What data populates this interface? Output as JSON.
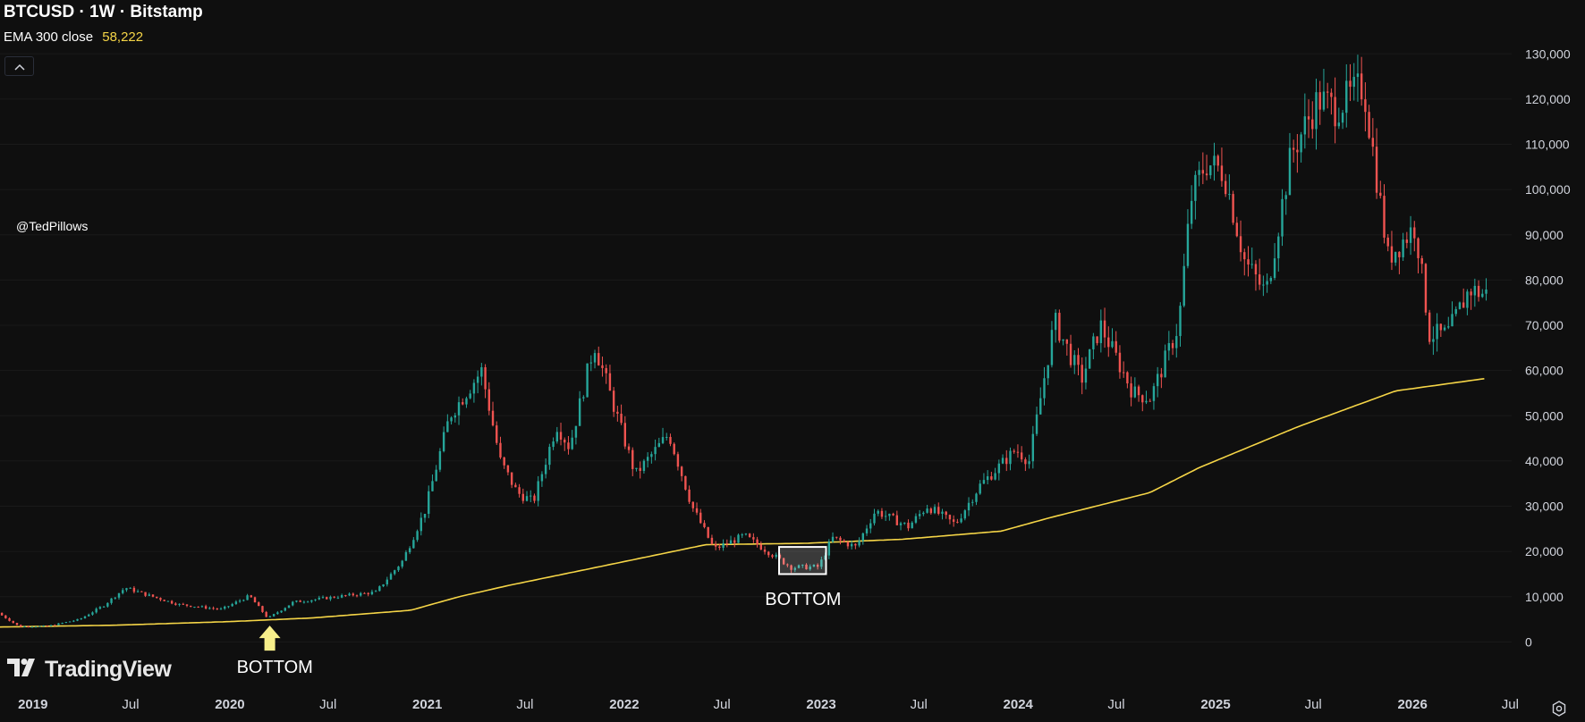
{
  "header": {
    "title": "BTCUSD · 1W · Bitstamp",
    "indicator_label": "EMA 300 close",
    "indicator_value": "58,222",
    "collapse_icon": "chevron-up-icon"
  },
  "watermark": {
    "user": "@TedPillows",
    "logo_text": "TradingView"
  },
  "annotations": {
    "bottom_1": "BOTTOM",
    "bottom_2": "BOTTOM"
  },
  "colors": {
    "background": "#0f0f0f",
    "up": "#26a69a",
    "down": "#ef5350",
    "ema": "#f5d547",
    "text": "#d1d4dc"
  },
  "chart_data": {
    "type": "candlestick",
    "title": "BTCUSD · 1W · Bitstamp",
    "interval": "1W",
    "exchange": "Bitstamp",
    "y_ticks": [
      "130,000",
      "120,000",
      "110,000",
      "100,000",
      "90,000",
      "80,000",
      "70,000",
      "60,000",
      "50,000",
      "40,000",
      "30,000",
      "20,000",
      "10,000",
      "0"
    ],
    "x_ticks": [
      "2019",
      "Jul",
      "2020",
      "Jul",
      "2021",
      "Jul",
      "2022",
      "Jul",
      "2023",
      "Jul",
      "2024",
      "Jul",
      "2025",
      "Jul",
      "2026",
      "Jul"
    ],
    "ylim": [
      -1500,
      135000
    ],
    "price_path": [
      [
        "2018-11-01",
        6400
      ],
      [
        "2018-12-10",
        3400
      ],
      [
        "2019-02-01",
        3500
      ],
      [
        "2019-04-01",
        5000
      ],
      [
        "2019-05-15",
        8000
      ],
      [
        "2019-06-25",
        12000
      ],
      [
        "2019-08-01",
        10500
      ],
      [
        "2019-10-01",
        8300
      ],
      [
        "2019-12-20",
        7200
      ],
      [
        "2020-02-10",
        10200
      ],
      [
        "2020-03-15",
        5200
      ],
      [
        "2020-05-01",
        8800
      ],
      [
        "2020-07-20",
        10000
      ],
      [
        "2020-10-01",
        11000
      ],
      [
        "2020-11-20",
        18000
      ],
      [
        "2020-12-31",
        29000
      ],
      [
        "2021-02-15",
        50000
      ],
      [
        "2021-04-15",
        60000
      ],
      [
        "2021-05-20",
        40000
      ],
      [
        "2021-06-20",
        33000
      ],
      [
        "2021-07-20",
        31000
      ],
      [
        "2021-09-01",
        48000
      ],
      [
        "2021-09-25",
        43000
      ],
      [
        "2021-11-10",
        66000
      ],
      [
        "2021-12-31",
        46500
      ],
      [
        "2022-01-25",
        37000
      ],
      [
        "2022-03-28",
        46000
      ],
      [
        "2022-05-10",
        30000
      ],
      [
        "2022-06-20",
        20500
      ],
      [
        "2022-08-15",
        23500
      ],
      [
        "2022-11-10",
        16500
      ],
      [
        "2022-12-31",
        16600
      ],
      [
        "2023-01-25",
        23000
      ],
      [
        "2023-03-10",
        21000
      ],
      [
        "2023-04-15",
        29000
      ],
      [
        "2023-06-15",
        25500
      ],
      [
        "2023-07-20",
        30000
      ],
      [
        "2023-09-10",
        26000
      ],
      [
        "2023-10-25",
        34500
      ],
      [
        "2023-12-31",
        42500
      ],
      [
        "2024-01-25",
        40000
      ],
      [
        "2024-03-12",
        71000
      ],
      [
        "2024-05-01",
        58000
      ],
      [
        "2024-06-05",
        70000
      ],
      [
        "2024-08-05",
        55000
      ],
      [
        "2024-09-06",
        54000
      ],
      [
        "2024-10-28",
        70000
      ],
      [
        "2024-11-20",
        98000
      ],
      [
        "2024-12-17",
        106000
      ],
      [
        "2025-01-20",
        104000
      ],
      [
        "2025-02-28",
        84000
      ],
      [
        "2025-04-08",
        77000
      ],
      [
        "2025-05-25",
        108000
      ],
      [
        "2025-07-14",
        120000
      ],
      [
        "2025-08-14",
        118000
      ],
      [
        "2025-10-06",
        123000
      ],
      [
        "2025-11-20",
        85000
      ],
      [
        "2026-01-10",
        92000
      ],
      [
        "2026-02-05",
        68000
      ],
      [
        "2026-03-10",
        68000
      ],
      [
        "2026-04-20",
        78000
      ],
      [
        "2026-05-15",
        77000
      ]
    ],
    "ema_300": [
      [
        "2018-11-01",
        3300
      ],
      [
        "2019-06-01",
        3700
      ],
      [
        "2020-01-01",
        4500
      ],
      [
        "2020-06-01",
        5300
      ],
      [
        "2020-12-01",
        7000
      ],
      [
        "2021-03-01",
        10000
      ],
      [
        "2021-06-01",
        12500
      ],
      [
        "2021-12-01",
        17000
      ],
      [
        "2022-06-01",
        21500
      ],
      [
        "2022-12-01",
        21800
      ],
      [
        "2023-06-01",
        22700
      ],
      [
        "2023-12-01",
        24500
      ],
      [
        "2024-03-01",
        27500
      ],
      [
        "2024-09-01",
        33000
      ],
      [
        "2024-12-01",
        38500
      ],
      [
        "2025-06-01",
        47500
      ],
      [
        "2025-12-01",
        55500
      ],
      [
        "2026-05-15",
        58222
      ]
    ],
    "highlight_box": {
      "from": "2022-10-15",
      "to": "2023-01-10",
      "low": 15000,
      "high": 21000,
      "label": "BOTTOM"
    },
    "bottom_marker": {
      "date": "2020-03-15",
      "value": 4800,
      "label": "BOTTOM"
    }
  }
}
